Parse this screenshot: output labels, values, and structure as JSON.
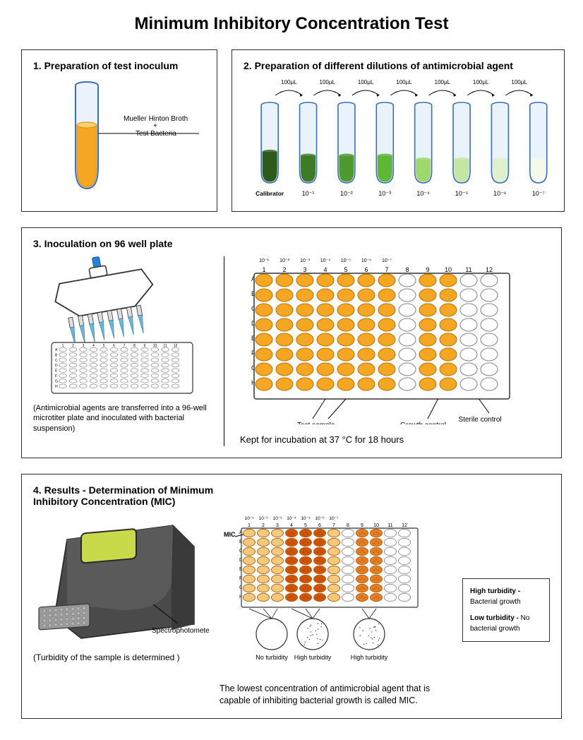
{
  "title": "Minimum Inhibitory Concentration Test",
  "colors": {
    "border": "#2b2b2b",
    "tube_outline": "#3b6fb5",
    "orange_fill": "#f5a623",
    "orange_dark": "#d68910",
    "orange_stroke": "#b9770e",
    "white": "#ffffff",
    "plate_border": "#4a4a4a",
    "well_stroke": "#888",
    "pipette_blue": "#2980d9",
    "pipette_body": "#ffffff",
    "pipette_outline": "#333",
    "spec_dark": "#3a3a3a",
    "spec_mid": "#4a4a4a",
    "spec_light": "#7a7a7a",
    "spec_screen": "#c8d94a",
    "spec_tray": "#9a9a9a",
    "red_orange": "#e67e22",
    "deep_orange": "#d35400"
  },
  "panel1": {
    "title": "1. Preparation of test inoculum",
    "tube_label_line1": "Mueller Hinton Broth",
    "tube_label_line2": "+",
    "tube_label_line3": "Test Bacteria",
    "tube_fill_color": "#f5a623",
    "tube_fill_level": 0.55
  },
  "panel2": {
    "title": "2. Preparation of different dilutions of antimicrobial agent",
    "transfer_label": "100μL",
    "tubes": [
      {
        "label": "Calibrator",
        "fill_color": "#2e5a1a",
        "level": 0.4
      },
      {
        "label": "10⁻¹",
        "fill_color": "#3f7a24",
        "level": 0.35
      },
      {
        "label": "10⁻²",
        "fill_color": "#4f9a2e",
        "level": 0.35
      },
      {
        "label": "10⁻³",
        "fill_color": "#5fb738",
        "level": 0.35
      },
      {
        "label": "10⁻⁴",
        "fill_color": "#9ed76b",
        "level": 0.3
      },
      {
        "label": "10⁻⁵",
        "fill_color": "#c4e6a3",
        "level": 0.3
      },
      {
        "label": "10⁻⁶",
        "fill_color": "#dff0cc",
        "level": 0.3
      },
      {
        "label": "10⁻⁷",
        "fill_color": "#f4f9ec",
        "level": 0.3
      }
    ]
  },
  "panel3": {
    "title": "3. Inoculation on 96 well plate",
    "pipette_caption": "(Antimicrobial agents are transferred into a 96-well microtiter plate and inoculated with bacterial suspension)",
    "row_labels": [
      "A",
      "B",
      "C",
      "D",
      "E",
      "F",
      "G",
      "H"
    ],
    "col_labels": [
      "1",
      "2",
      "3",
      "4",
      "5",
      "6",
      "7",
      "8",
      "9",
      "10",
      "11",
      "12"
    ],
    "top_exp_labels": [
      "10⁻¹",
      "10⁻²",
      "10⁻³",
      "10⁻⁴",
      "10⁻⁵",
      "10⁻⁶",
      "10⁻⁷"
    ],
    "annotation_test": "Test sample",
    "annotation_growth": "Growth control",
    "annotation_sterile": "Sterile control",
    "incubation_note": "Kept for incubation at 37 °C for 18 hours",
    "wells": {
      "filled_cols": [
        1,
        2,
        3,
        4,
        5,
        6,
        7,
        9,
        10
      ],
      "empty_cols": [
        8,
        11,
        12
      ],
      "fill_color": "#f5a623"
    }
  },
  "panel4": {
    "title": "4. Results - Determination of Minimum Inhibitory Concentration (MIC)",
    "spec_label": "Spectrophotometer",
    "spec_caption": "(Turbidity  of the sample is determined )",
    "mic_label": "MIC",
    "top_exp_labels": [
      "10⁻¹",
      "10⁻²",
      "10⁻³",
      "10⁻⁴",
      "10⁻⁵",
      "10⁻⁶",
      "10⁻⁷"
    ],
    "close_labels": [
      "No turbidity",
      "High turbidity",
      "High turbidity"
    ],
    "legend_high": "High turbidity -",
    "legend_high_desc": "Bacterial growth",
    "legend_low": "Low turbidity -",
    "legend_low_desc": "No bacterial growth",
    "summary": "The lowest concentration of antimicrobial agent that is capable of inhibiting bacterial growth is called MIC.",
    "result_wells": [
      {
        "cols": [
          1,
          2,
          3
        ],
        "color": "#f5c97a",
        "growth": false
      },
      {
        "cols": [
          4,
          5,
          6
        ],
        "color": "#d35400",
        "growth": true
      },
      {
        "cols": [
          7
        ],
        "color": "#f5c97a",
        "growth": false
      },
      {
        "cols": [
          8
        ],
        "color": "#ffffff",
        "growth": false
      },
      {
        "cols": [
          9,
          10
        ],
        "color": "#e67e22",
        "growth": true
      },
      {
        "cols": [
          11,
          12
        ],
        "color": "#ffffff",
        "growth": false
      }
    ]
  }
}
